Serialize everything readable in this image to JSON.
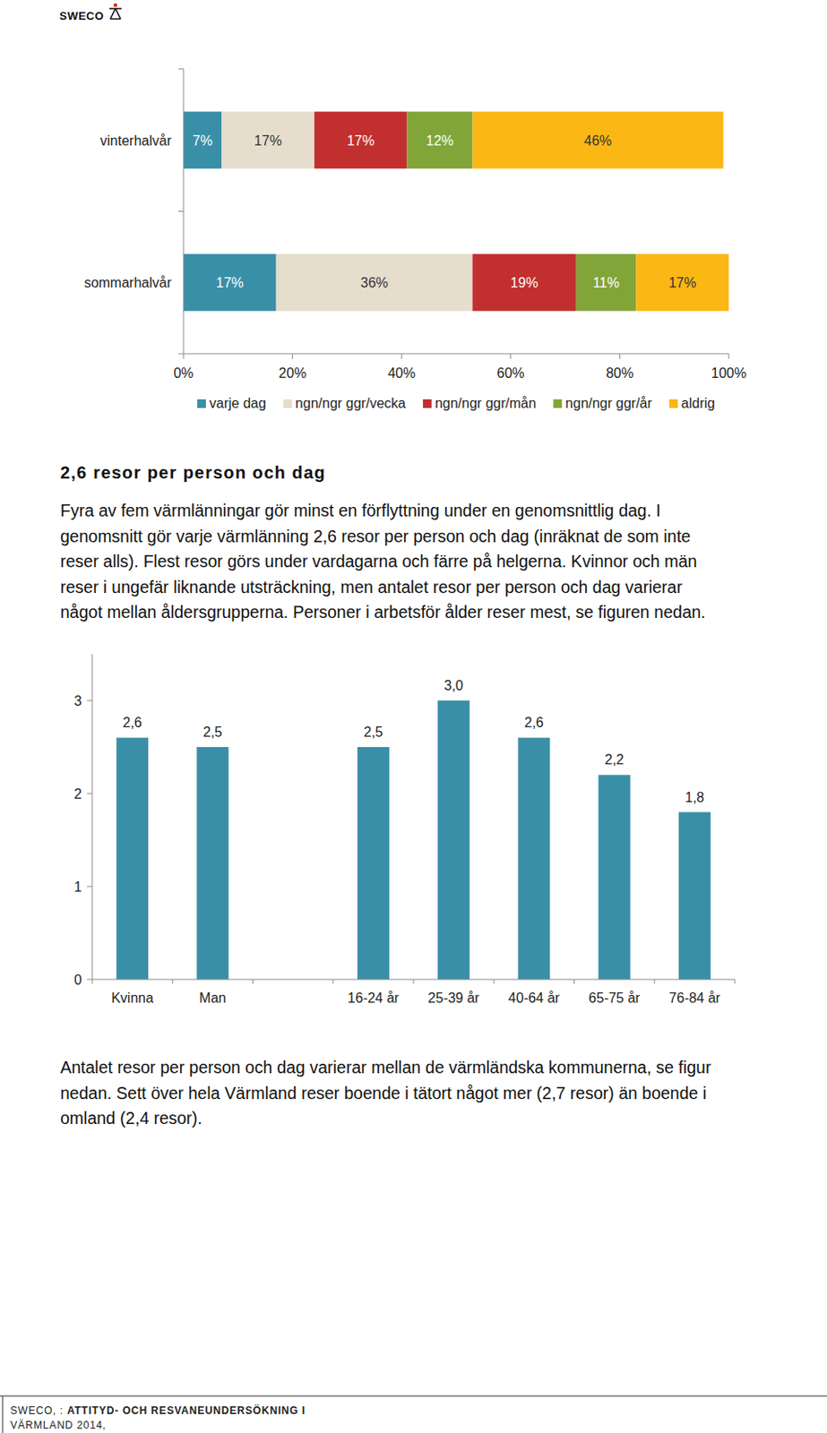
{
  "header": {
    "logo": "SWECO"
  },
  "chart_data": [
    {
      "type": "bar",
      "orientation": "horizontal",
      "stacked": true,
      "categories": [
        "vinterhalvår",
        "sommarhalvår"
      ],
      "series": [
        {
          "name": "varje dag",
          "color": "#3a8fa8",
          "values": [
            7,
            17
          ],
          "value_labels": [
            "7%",
            "17%"
          ]
        },
        {
          "name": "ngn/ngr ggr/vecka",
          "color": "#e6ddcd",
          "values": [
            17,
            36
          ],
          "value_labels": [
            "17%",
            "36%"
          ]
        },
        {
          "name": "ngn/ngr ggr/mån",
          "color": "#c1302f",
          "values": [
            17,
            19
          ],
          "value_labels": [
            "17%",
            "19%"
          ]
        },
        {
          "name": "ngn/ngr ggr/år",
          "color": "#82a53a",
          "values": [
            12,
            11
          ],
          "value_labels": [
            "12%",
            "11%"
          ]
        },
        {
          "name": "aldrig",
          "color": "#fbb714",
          "values": [
            46,
            17
          ],
          "value_labels": [
            "46%",
            "17%"
          ]
        }
      ],
      "xlim": [
        0,
        100
      ],
      "xticks": [
        {
          "value": 0,
          "label": "0%"
        },
        {
          "value": 20,
          "label": "20%"
        },
        {
          "value": 40,
          "label": "40%"
        },
        {
          "value": 60,
          "label": "60%"
        },
        {
          "value": 80,
          "label": "80%"
        },
        {
          "value": 100,
          "label": "100%"
        }
      ],
      "grid": false,
      "legend": "bottom",
      "data_labels": true
    },
    {
      "type": "bar",
      "categories": [
        "Kvinna",
        "Man",
        null,
        "16-24 år",
        "25-39 år",
        "40-64 år",
        "65-75 år",
        "76-84 år"
      ],
      "values": [
        2.6,
        2.5,
        null,
        2.5,
        3.0,
        2.6,
        2.2,
        1.8
      ],
      "value_labels": [
        "2,6",
        "2,5",
        null,
        "2,5",
        "3,0",
        "2,6",
        "2,2",
        "1,8"
      ],
      "color": "#3a8fa8",
      "ylim": [
        0,
        3.5
      ],
      "yticks": [
        0,
        1,
        2,
        3
      ],
      "grid": false,
      "data_labels": true
    }
  ],
  "section": {
    "heading": "2,6 resor per person och dag",
    "paragraph_lines": [
      "Fyra av fem värmlänningar gör minst en förflyttning under en genomsnittlig dag. I",
      "genomsnitt gör varje värmlänning 2,6 resor per person och dag (inräknat de som inte",
      "reser alls).  Flest resor görs under vardagarna och färre på helgerna. Kvinnor och män",
      "reser i ungefär liknande utsträckning, men antalet resor per person och dag varierar",
      "något mellan åldersgrupperna. Personer i arbetsför ålder reser mest, se figuren nedan."
    ],
    "after_lines": [
      "Antalet resor per person och dag varierar mellan de värmländska kommunerna, se figur",
      "nedan. Sett över hela Värmland reser boende i tätort något mer (2,7 resor) än boende i",
      "omland (2,4 resor)."
    ]
  },
  "footer": {
    "prefix": "SWECO, :",
    "title": "ATTITYD- OCH RESVANEUNDERSÖKNING I",
    "title_cont": "VÄRMLAND 2014,"
  }
}
